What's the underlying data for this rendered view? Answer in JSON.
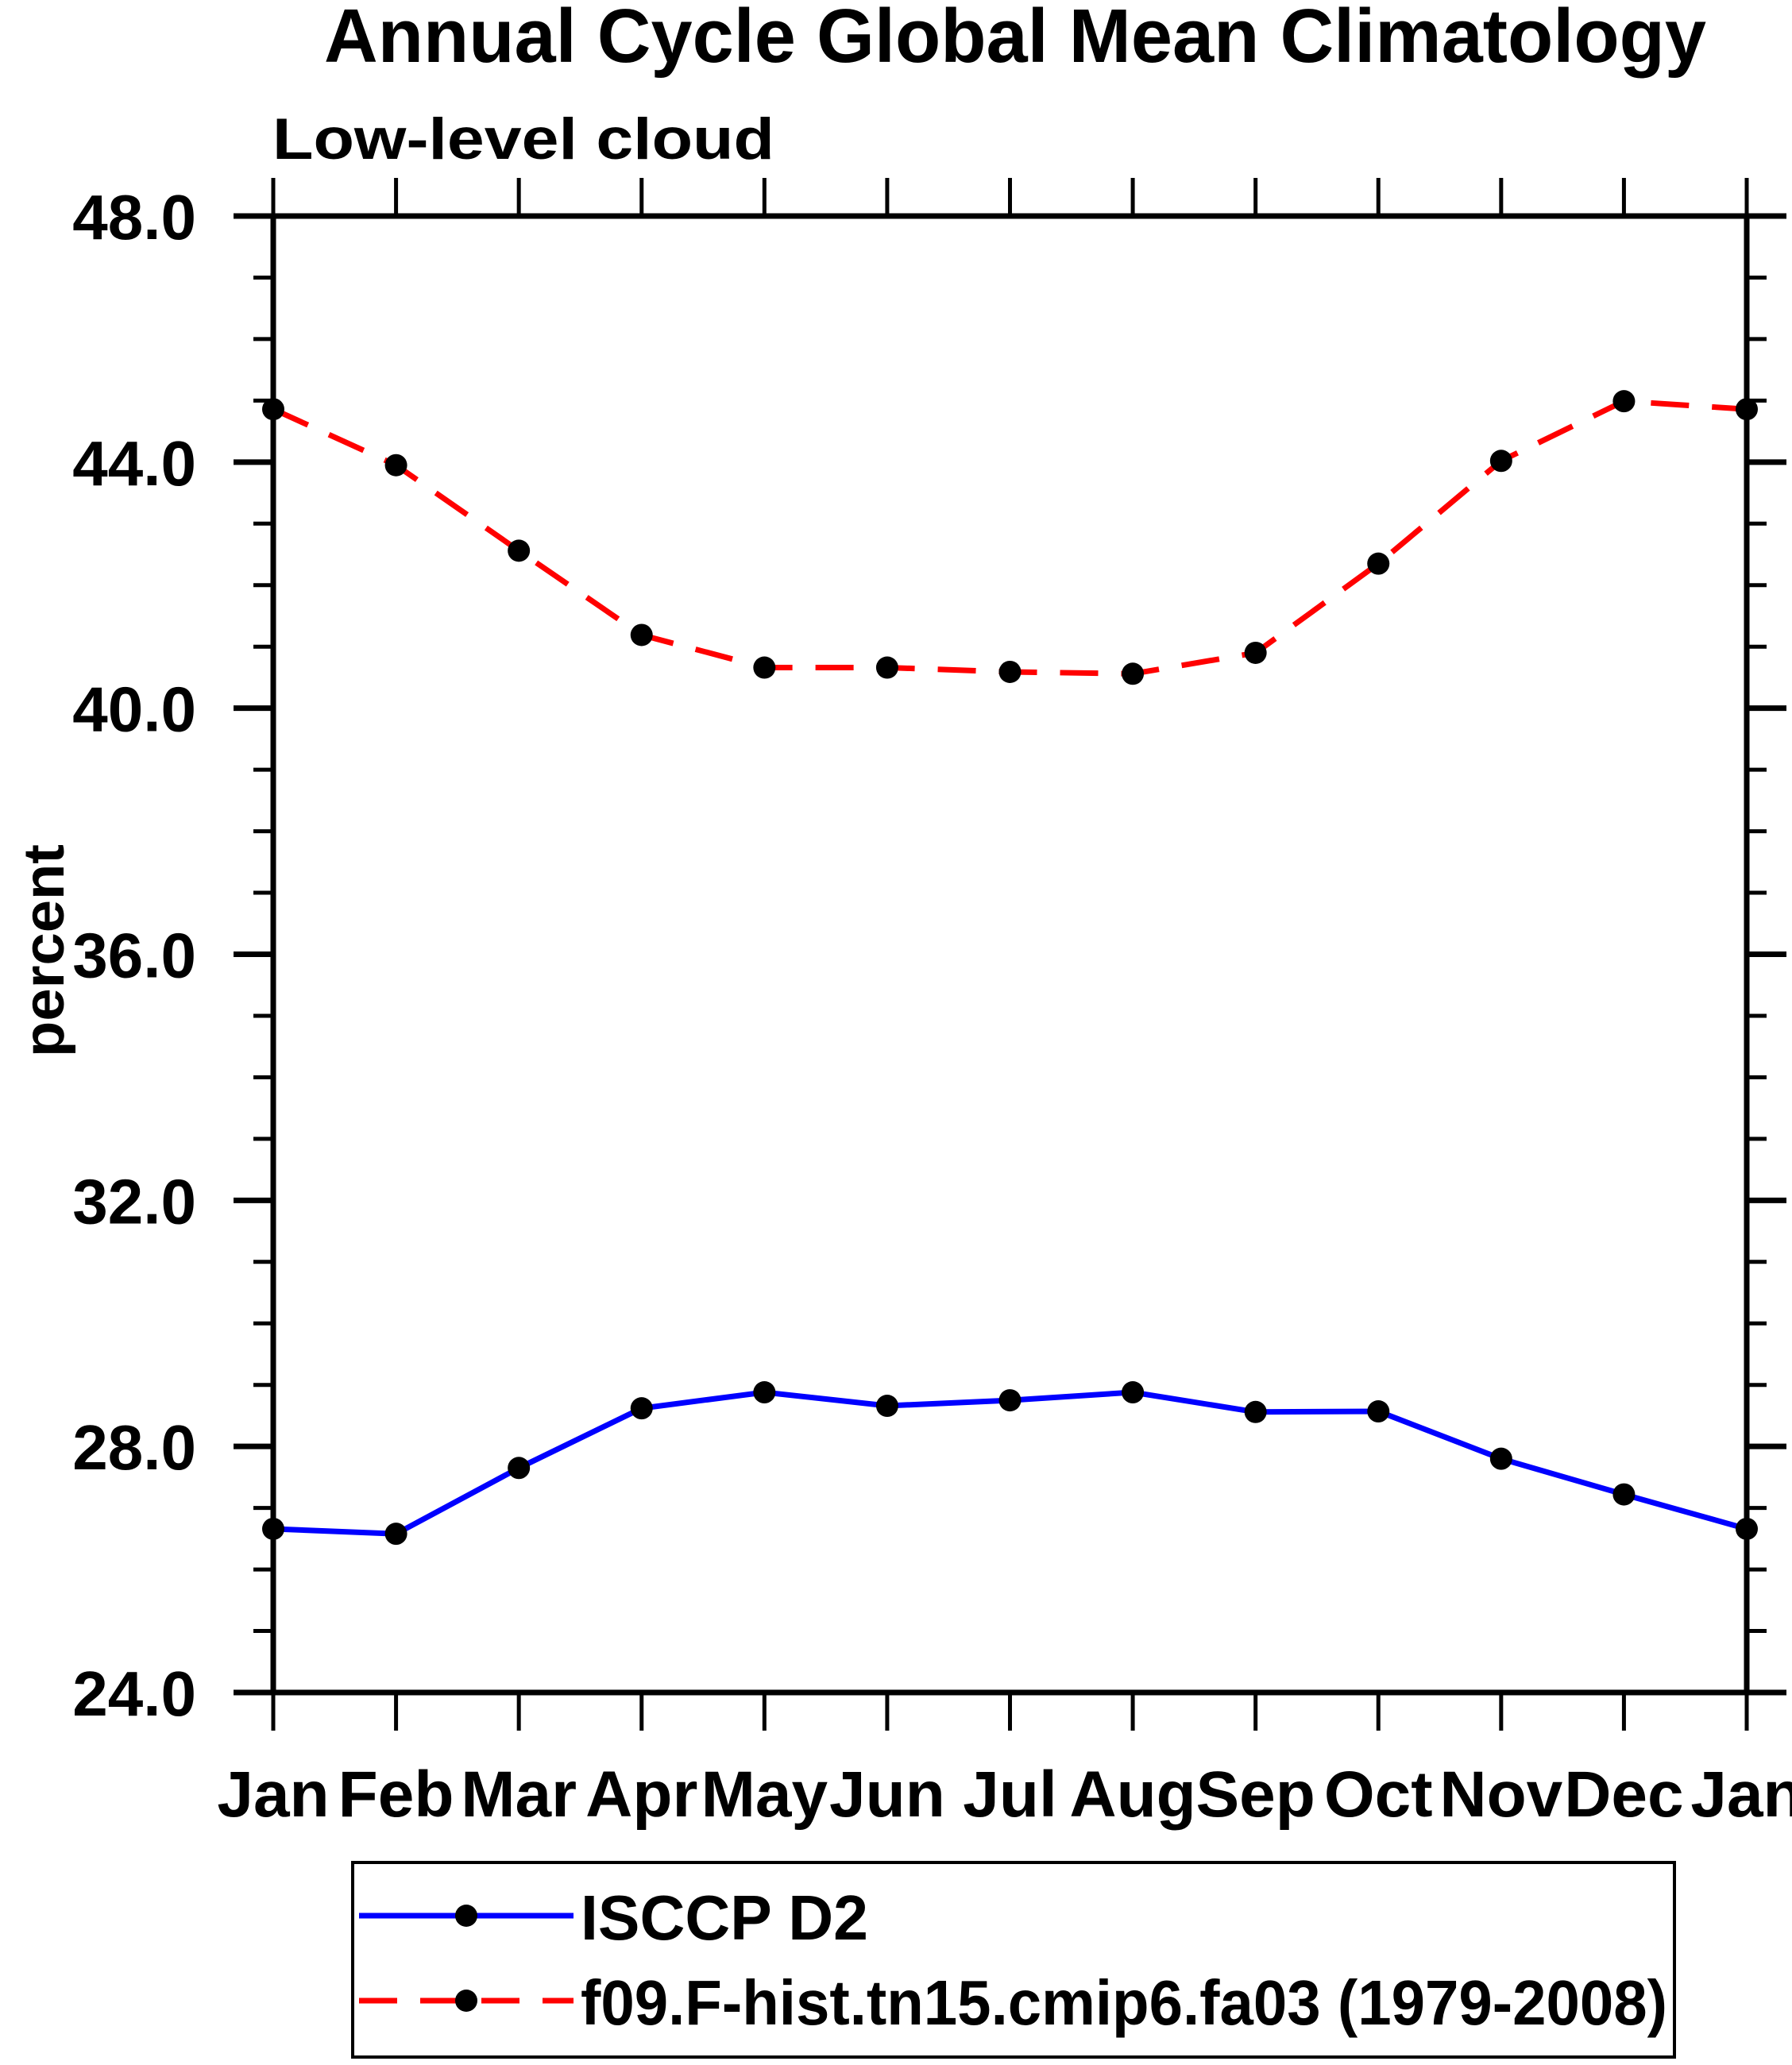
{
  "chart_data": {
    "type": "line",
    "title": "Annual Cycle Global Mean Climatology",
    "subtitle": "Low-level cloud",
    "ylabel": "percent",
    "xlabel": "",
    "ylim": [
      24.0,
      48.0
    ],
    "ytick_major_interval": 4.0,
    "ytick_minor_interval": 1.0,
    "ytick_major_labels": [
      "24.0",
      "28.0",
      "32.0",
      "36.0",
      "40.0",
      "44.0",
      "48.0"
    ],
    "x_categories": [
      "Jan",
      "Feb",
      "Mar",
      "Apr",
      "May",
      "Jun",
      "Jul",
      "Aug",
      "Sep",
      "Oct",
      "Nov",
      "Dec",
      "Jan"
    ],
    "grid": false,
    "axis_color": "#000000",
    "text_color": "#000000",
    "background_color": "#ffffff",
    "legend_position": "bottom-box",
    "series": [
      {
        "name": "ISCCP D2",
        "color": "#0000ff",
        "line_style": "solid",
        "marker": "filled-circle",
        "marker_color": "#000000",
        "values": [
          26.66,
          26.58,
          27.65,
          28.62,
          28.88,
          28.66,
          28.75,
          28.88,
          28.56,
          28.57,
          27.8,
          27.22,
          26.66
        ]
      },
      {
        "name": "f09.F-hist.tn15.cmip6.fa03 (1979-2008)",
        "color": "#ff0000",
        "line_style": "dashed",
        "marker": "filled-circle",
        "marker_color": "#000000",
        "values": [
          44.86,
          43.95,
          42.56,
          41.19,
          40.66,
          40.66,
          40.59,
          40.56,
          40.9,
          42.35,
          44.02,
          44.99,
          44.86
        ]
      }
    ]
  }
}
